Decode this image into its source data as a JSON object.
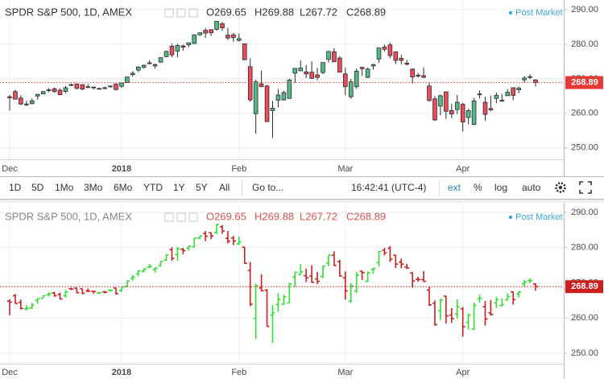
{
  "chart_data": [
    {
      "type": "candlestick",
      "title": "SPDR S&P 500, 1D, AMEX",
      "ohlc_legend": [
        {
          "value": 269.65,
          "label": "O269.65"
        },
        {
          "value": 269.88,
          "label": "H269.88"
        },
        {
          "value": 267.72,
          "label": "L267.72"
        },
        {
          "value": 268.89,
          "label": "C268.89"
        }
      ],
      "badge": "Post Market",
      "categories": [
        "Dec",
        null,
        null,
        null,
        null,
        null,
        null,
        null,
        null,
        null,
        null,
        null,
        null,
        null,
        null,
        null,
        null,
        null,
        null,
        null,
        "2018",
        null,
        null,
        null,
        null,
        null,
        null,
        null,
        null,
        null,
        null,
        null,
        null,
        null,
        null,
        null,
        null,
        null,
        null,
        null,
        null,
        "Feb",
        null,
        null,
        null,
        null,
        null,
        null,
        null,
        null,
        null,
        null,
        null,
        null,
        null,
        null,
        null,
        null,
        null,
        null,
        "Mar",
        null,
        null,
        null,
        null,
        null,
        null,
        null,
        null,
        null,
        null,
        null,
        null,
        null,
        null,
        null,
        null,
        null,
        null,
        null,
        null,
        "Apr",
        null,
        null,
        null,
        null,
        null,
        null,
        null,
        null,
        null,
        null,
        null,
        null,
        null
      ],
      "open": [
        264.8,
        266.3,
        264.4,
        262.6,
        262.8,
        265.0,
        265.6,
        266.6,
        267.1,
        266.7,
        266.3,
        268.3,
        268.5,
        268.3,
        267.7,
        267.6,
        267.1,
        267.4,
        267.9,
        268.5,
        267.8,
        268.9,
        271.2,
        272.5,
        273.3,
        274.4,
        273.7,
        274.8,
        276.4,
        279.4,
        278.0,
        279.5,
        279.8,
        280.2,
        282.7,
        284.0,
        284.2,
        284.3,
        285.9,
        282.6,
        282.7,
        281.1,
        280.1,
        273.5,
        259.9,
        268.5,
        267.9,
        260.8,
        263.8,
        263.9,
        264.3,
        271.6,
        272.3,
        272.0,
        271.9,
        271.1,
        271.8,
        275.6,
        277.8,
        276.0,
        271.4,
        264.8,
        267.7,
        273.3,
        270.4,
        273.7,
        275.7,
        279.2,
        279.8,
        277.8,
        275.9,
        274.5,
        272.8,
        271.0,
        270.9,
        267.9,
        264.2,
        262.1,
        266.2,
        260.8,
        261.1,
        262.6,
        258.8,
        256.8,
        265.4,
        263.2,
        261.4,
        264.3,
        263.5,
        265.1,
        267.4,
        266.8,
        269.7,
        270.6,
        269.65
      ],
      "high": [
        265.3,
        266.8,
        265.2,
        263.6,
        264.3,
        265.5,
        266.4,
        267.3,
        267.4,
        267.2,
        267.9,
        268.6,
        268.5,
        268.3,
        268.4,
        267.6,
        267.4,
        267.7,
        267.9,
        268.5,
        268.8,
        270.6,
        272.2,
        273.6,
        274.1,
        275.3,
        274.4,
        276.1,
        278.1,
        280.1,
        280.1,
        279.9,
        280.4,
        282.7,
        283.3,
        284.7,
        284.3,
        286.6,
        286.4,
        284.7,
        283.3,
        283.1,
        280.2,
        275.9,
        269.7,
        272.4,
        268.2,
        263.6,
        267.0,
        266.6,
        270.0,
        273.0,
        275.3,
        274.0,
        275.0,
        273.1,
        274.7,
        277.9,
        278.9,
        276.5,
        273.2,
        269.9,
        273.0,
        273.4,
        273.2,
        274.3,
        278.9,
        279.9,
        280.4,
        277.9,
        276.9,
        275.4,
        273.0,
        271.7,
        273.3,
        268.9,
        265.0,
        265.4,
        266.3,
        262.8,
        265.3,
        263.1,
        261.3,
        264.4,
        266.6,
        264.8,
        265.1,
        266.0,
        265.6,
        267.0,
        267.5,
        267.7,
        270.8,
        271.3,
        269.88
      ],
      "low": [
        260.8,
        264.1,
        262.4,
        262.1,
        262.6,
        264.0,
        265.6,
        266.1,
        266.0,
        265.2,
        265.8,
        267.9,
        267.0,
        266.7,
        267.3,
        266.9,
        266.9,
        267.0,
        267.4,
        266.6,
        267.4,
        268.9,
        270.6,
        271.9,
        272.9,
        274.1,
        272.9,
        274.6,
        276.2,
        276.2,
        276.2,
        278.1,
        279.1,
        280.1,
        282.4,
        281.8,
        282.4,
        283.9,
        283.9,
        281.2,
        280.7,
        280.7,
        275.4,
        263.3,
        254.1,
        267.6,
        257.6,
        252.9,
        261.7,
        263.7,
        264.3,
        268.8,
        272.3,
        270.2,
        270.0,
        269.6,
        271.3,
        274.7,
        274.8,
        271.8,
        265.2,
        264.3,
        267.1,
        270.8,
        270.2,
        272.6,
        274.6,
        277.8,
        275.9,
        274.2,
        274.1,
        273.9,
        268.6,
        270.3,
        270.2,
        263.4,
        257.8,
        259.4,
        258.4,
        258.6,
        259.8,
        254.7,
        256.8,
        256.6,
        264.3,
        257.8,
        260.6,
        262.9,
        263.4,
        265.1,
        263.8,
        265.8,
        268.8,
        269.9,
        267.72
      ],
      "close": [
        264.5,
        264.1,
        262.7,
        262.7,
        263.6,
        265.5,
        266.3,
        266.8,
        266.3,
        265.4,
        267.4,
        268.2,
        267.2,
        267.0,
        267.6,
        267.5,
        267.2,
        267.3,
        267.9,
        266.9,
        268.8,
        270.5,
        271.6,
        273.4,
        273.9,
        274.6,
        274.1,
        276.1,
        277.9,
        276.9,
        279.6,
        279.1,
        280.4,
        282.7,
        283.3,
        283.2,
        283.3,
        286.6,
        284.7,
        281.8,
        281.9,
        281.6,
        275.5,
        263.9,
        269.1,
        267.7,
        257.6,
        261.5,
        265.3,
        266.0,
        269.6,
        273.0,
        273.1,
        271.4,
        270.1,
        270.4,
        274.7,
        277.9,
        274.9,
        271.9,
        267.7,
        269.1,
        272.2,
        272.9,
        272.8,
        274.1,
        278.9,
        278.5,
        276.7,
        275.3,
        275.3,
        274.2,
        270.5,
        270.9,
        270.4,
        263.7,
        258.1,
        265.1,
        260.6,
        259.8,
        263.2,
        257.5,
        260.8,
        263.6,
        265.6,
        259.7,
        261.0,
        265.2,
        263.8,
        266.1,
        265.2,
        267.3,
        270.2,
        270.6,
        268.89
      ],
      "up_color": "#53b987",
      "down_color": "#eb4d5c",
      "outline_color": "#2b2b2b",
      "last_price": 268.89,
      "last_price_color": "#e53935",
      "ylim": [
        246.7,
        292.3
      ],
      "yticks": [
        {
          "value": 250,
          "label": "250.00"
        },
        {
          "value": 260,
          "label": "260.00"
        },
        {
          "value": 270,
          "label": "270.00"
        },
        {
          "value": 280,
          "label": "280.00"
        },
        {
          "value": 290,
          "label": "290.00"
        }
      ],
      "grid": true
    },
    {
      "type": "ohlc",
      "title": "SPDR S&P 500, 1D, AMEX",
      "ohlc_legend": [
        {
          "value": 269.65,
          "label": "O269.65"
        },
        {
          "value": 269.88,
          "label": "H269.88"
        },
        {
          "value": 267.72,
          "label": "L267.72"
        },
        {
          "value": 268.89,
          "label": "C268.89"
        }
      ],
      "badge": "Post Market",
      "categories": [
        "Dec",
        null,
        null,
        null,
        null,
        null,
        null,
        null,
        null,
        null,
        null,
        null,
        null,
        null,
        null,
        null,
        null,
        null,
        null,
        null,
        "2018",
        null,
        null,
        null,
        null,
        null,
        null,
        null,
        null,
        null,
        null,
        null,
        null,
        null,
        null,
        null,
        null,
        null,
        null,
        null,
        null,
        "Feb",
        null,
        null,
        null,
        null,
        null,
        null,
        null,
        null,
        null,
        null,
        null,
        null,
        null,
        null,
        null,
        null,
        null,
        null,
        "Mar",
        null,
        null,
        null,
        null,
        null,
        null,
        null,
        null,
        null,
        null,
        null,
        null,
        null,
        null,
        null,
        null,
        null,
        null,
        null,
        null,
        "Apr",
        null,
        null,
        null,
        null,
        null,
        null,
        null,
        null,
        null,
        null,
        null,
        null,
        null
      ],
      "open": [
        264.8,
        266.3,
        264.4,
        262.6,
        262.8,
        265.0,
        265.6,
        266.6,
        267.1,
        266.7,
        266.3,
        268.3,
        268.5,
        268.3,
        267.7,
        267.6,
        267.1,
        267.4,
        267.9,
        268.5,
        267.8,
        268.9,
        271.2,
        272.5,
        273.3,
        274.4,
        273.7,
        274.8,
        276.4,
        279.4,
        278.0,
        279.5,
        279.8,
        280.2,
        282.7,
        284.0,
        284.2,
        284.3,
        285.9,
        282.6,
        282.7,
        281.1,
        280.1,
        273.5,
        259.9,
        268.5,
        267.9,
        260.8,
        263.8,
        263.9,
        264.3,
        271.6,
        272.3,
        272.0,
        271.9,
        271.1,
        271.8,
        275.6,
        277.8,
        276.0,
        271.4,
        264.8,
        267.7,
        273.3,
        270.4,
        273.7,
        275.7,
        279.2,
        279.8,
        277.8,
        275.9,
        274.5,
        272.8,
        271.0,
        270.9,
        267.9,
        264.2,
        262.1,
        266.2,
        260.8,
        261.1,
        262.6,
        258.8,
        256.8,
        265.4,
        263.2,
        261.4,
        264.3,
        263.5,
        265.1,
        267.4,
        266.8,
        269.7,
        270.6,
        269.65
      ],
      "high": [
        265.3,
        266.8,
        265.2,
        263.6,
        264.3,
        265.5,
        266.4,
        267.3,
        267.4,
        267.2,
        267.9,
        268.6,
        268.5,
        268.3,
        268.4,
        267.6,
        267.4,
        267.7,
        267.9,
        268.5,
        268.8,
        270.6,
        272.2,
        273.6,
        274.1,
        275.3,
        274.4,
        276.1,
        278.1,
        280.1,
        280.1,
        279.9,
        280.4,
        282.7,
        283.3,
        284.7,
        284.3,
        286.6,
        286.4,
        284.7,
        283.3,
        283.1,
        280.2,
        275.9,
        269.7,
        272.4,
        268.2,
        263.6,
        267.0,
        266.6,
        270.0,
        273.0,
        275.3,
        274.0,
        275.0,
        273.1,
        274.7,
        277.9,
        278.9,
        276.5,
        273.2,
        269.9,
        273.0,
        273.4,
        273.2,
        274.3,
        278.9,
        279.9,
        280.4,
        277.9,
        276.9,
        275.4,
        273.0,
        271.7,
        273.3,
        268.9,
        265.0,
        265.4,
        266.3,
        262.8,
        265.3,
        263.1,
        261.3,
        264.4,
        266.6,
        264.8,
        265.1,
        266.0,
        265.6,
        267.0,
        267.5,
        267.7,
        270.8,
        271.3,
        269.88
      ],
      "low": [
        260.8,
        264.1,
        262.4,
        262.1,
        262.6,
        264.0,
        265.6,
        266.1,
        266.0,
        265.2,
        265.8,
        267.9,
        267.0,
        266.7,
        267.3,
        266.9,
        266.9,
        267.0,
        267.4,
        266.6,
        267.4,
        268.9,
        270.6,
        271.9,
        272.9,
        274.1,
        272.9,
        274.6,
        276.2,
        276.2,
        276.2,
        278.1,
        279.1,
        280.1,
        282.4,
        281.8,
        282.4,
        283.9,
        283.9,
        281.2,
        280.7,
        280.7,
        275.4,
        263.3,
        254.1,
        267.6,
        257.6,
        252.9,
        261.7,
        263.7,
        264.3,
        268.8,
        272.3,
        270.2,
        270.0,
        269.6,
        271.3,
        274.7,
        274.8,
        271.8,
        265.2,
        264.3,
        267.1,
        270.8,
        270.2,
        272.6,
        274.6,
        277.8,
        275.9,
        274.2,
        274.1,
        273.9,
        268.6,
        270.3,
        270.2,
        263.4,
        257.8,
        259.4,
        258.4,
        258.6,
        259.8,
        254.7,
        256.8,
        256.6,
        264.3,
        257.8,
        260.6,
        262.9,
        263.4,
        265.1,
        263.8,
        265.8,
        268.8,
        269.9,
        267.72
      ],
      "close": [
        264.5,
        264.1,
        262.7,
        262.7,
        263.6,
        265.5,
        266.3,
        266.8,
        266.3,
        265.4,
        267.4,
        268.2,
        267.2,
        267.0,
        267.6,
        267.5,
        267.2,
        267.3,
        267.9,
        266.9,
        268.8,
        270.5,
        271.6,
        273.4,
        273.9,
        274.6,
        274.1,
        276.1,
        277.9,
        276.9,
        279.6,
        279.1,
        280.4,
        282.7,
        283.3,
        283.2,
        283.3,
        286.6,
        284.7,
        281.8,
        281.9,
        281.6,
        275.5,
        263.9,
        269.1,
        267.7,
        257.6,
        261.5,
        265.3,
        266.0,
        269.6,
        273.0,
        273.1,
        271.4,
        270.1,
        270.4,
        274.7,
        277.9,
        274.9,
        271.9,
        267.7,
        269.1,
        272.2,
        272.9,
        272.8,
        274.1,
        278.9,
        278.5,
        276.7,
        275.3,
        275.3,
        274.2,
        270.5,
        270.9,
        270.4,
        263.7,
        258.1,
        265.1,
        260.6,
        259.8,
        263.2,
        257.5,
        260.8,
        263.6,
        265.6,
        259.7,
        261.0,
        265.2,
        263.8,
        266.1,
        265.2,
        267.3,
        270.2,
        270.6,
        268.89
      ],
      "up_color": "#33dd33",
      "down_color": "#cc1f1f",
      "last_price": 268.89,
      "last_price_color": "#cc1f1f",
      "ylim": [
        247.0,
        291.8
      ],
      "yticks": [
        {
          "value": 250,
          "label": "250.00"
        },
        {
          "value": 260,
          "label": "260.00"
        },
        {
          "value": 270,
          "label": "270.00"
        },
        {
          "value": 280,
          "label": "280.00"
        },
        {
          "value": 290,
          "label": "290.00"
        }
      ],
      "grid": true
    }
  ],
  "toolbar": {
    "ranges": [
      "1D",
      "5D",
      "1Mo",
      "3Mo",
      "6Mo",
      "YTD",
      "1Y",
      "5Y",
      "All"
    ],
    "goto": "Go to...",
    "clock": "16:42:41 (UTC-4)",
    "options": [
      "ext",
      "%",
      "log",
      "auto"
    ]
  }
}
